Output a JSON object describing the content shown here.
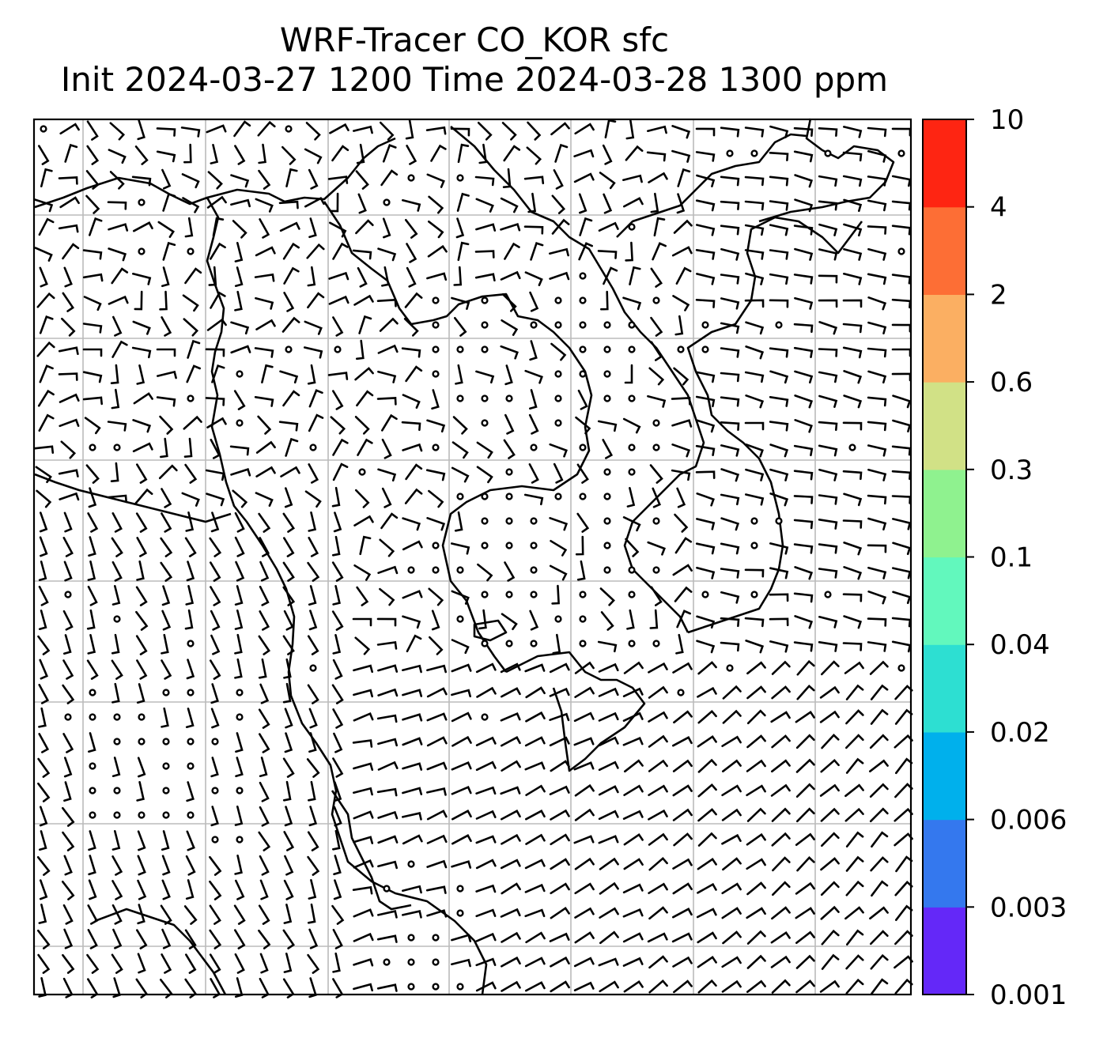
{
  "title": {
    "line1": "WRF-Tracer CO_KOR sfc",
    "line2": "Init 2024-03-27 1200 Time 2024-03-28 1300 ppm"
  },
  "colorbar": {
    "tick_labels": [
      "0.001",
      "0.003",
      "0.006",
      "0.02",
      "0.04",
      "0.1",
      "0.3",
      "0.6",
      "2",
      "4",
      "10"
    ],
    "colors": [
      "#6428f8",
      "#3478ee",
      "#00b0ec",
      "#2ddfd2",
      "#62f8bd",
      "#8ff28f",
      "#d1e186",
      "#fbaf62",
      "#fd6e35",
      "#fe2512"
    ]
  },
  "map": {
    "gridlines": true,
    "gridline_color": "#bbbbbb",
    "overlays": [
      "coastlines",
      "wind-barbs",
      "calm-circles"
    ]
  }
}
